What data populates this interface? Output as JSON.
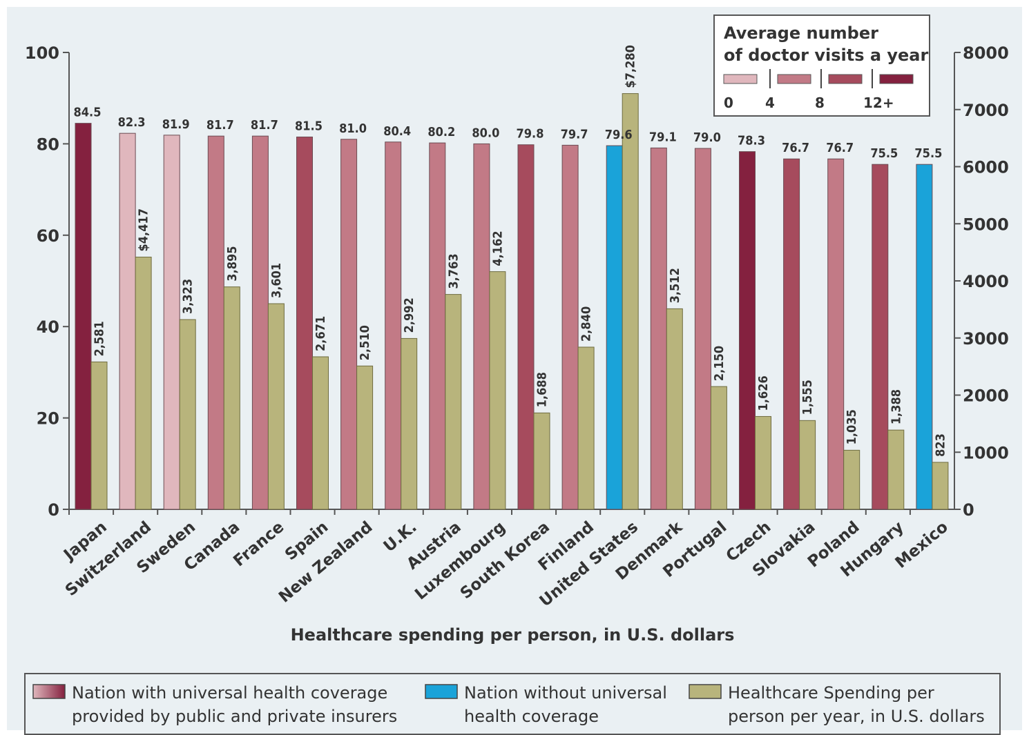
{
  "chart_data": {
    "type": "bar",
    "xlabel": "Healthcare spending per person, in U.S. dollars",
    "y_left_range": [
      0,
      100
    ],
    "y_left_ticks": [
      0,
      20,
      40,
      60,
      80,
      100
    ],
    "y_right_range": [
      0,
      8000
    ],
    "y_right_ticks": [
      0,
      1000,
      2000,
      3000,
      4000,
      5000,
      6000,
      7000,
      8000
    ],
    "grid": false,
    "categories": [
      "Japan",
      "Switzerland",
      "Sweden",
      "Canada",
      "France",
      "Spain",
      "New Zealand",
      "U.K.",
      "Austria",
      "Luxembourg",
      "South Korea",
      "Finland",
      "United States",
      "Denmark",
      "Portugal",
      "Czech",
      "Slovakia",
      "Poland",
      "Hungary",
      "Mexico"
    ],
    "series": [
      {
        "name": "",
        "axis": "left",
        "values": [
          84.5,
          82.3,
          81.9,
          81.7,
          81.7,
          81.5,
          81.0,
          80.4,
          80.2,
          80.0,
          79.8,
          79.7,
          79.6,
          79.1,
          79.0,
          78.3,
          76.7,
          76.7,
          75.5,
          75.5
        ],
        "labels": [
          "84.5",
          "82.3",
          "81.9",
          "81.7",
          "81.7",
          "81.5",
          "81.0",
          "80.4",
          "80.2",
          "80.0",
          "79.8",
          "79.7",
          "79.6",
          "79.1",
          "79.0",
          "78.3",
          "76.7",
          "76.7",
          "75.5",
          "75.5"
        ],
        "coverage": [
          "universal",
          "universal",
          "universal",
          "universal",
          "universal",
          "universal",
          "universal",
          "universal",
          "universal",
          "universal",
          "universal",
          "universal",
          "none",
          "universal",
          "universal",
          "universal",
          "universal",
          "universal",
          "universal",
          "none"
        ],
        "visits_level": [
          3,
          0,
          0,
          1,
          1,
          2,
          1,
          1,
          1,
          1,
          2,
          1,
          null,
          1,
          1,
          3,
          2,
          1,
          2,
          null
        ]
      },
      {
        "name": "Healthcare Spending per person per year, in U.S. dollars",
        "axis": "right",
        "values": [
          2581,
          4417,
          3323,
          3895,
          3601,
          2671,
          2510,
          2992,
          3763,
          4162,
          1688,
          2840,
          7280,
          3512,
          2150,
          1626,
          1555,
          1035,
          1388,
          823
        ],
        "labels": [
          "2,581",
          "$4,417",
          "3,323",
          "3,895",
          "3,601",
          "2,671",
          "2,510",
          "2,992",
          "3,763",
          "4,162",
          "1,688",
          "2,840",
          "$7,280",
          "3,512",
          "2,150",
          "1,626",
          "1,555",
          "1,035",
          "1,388",
          "823"
        ]
      }
    ],
    "visits_legend": {
      "title_line1": "Average number",
      "title_line2": "of doctor visits a year",
      "position": "top-right",
      "ticks": [
        "0",
        "4",
        "8",
        "12+"
      ]
    },
    "legend": {
      "position": "bottom",
      "items": [
        {
          "key": "universal",
          "line1": "Nation with universal health coverage",
          "line2": "provided by public and private insurers"
        },
        {
          "key": "none",
          "line1": "Nation without universal",
          "line2": "health coverage"
        },
        {
          "key": "spending",
          "line1": "Healthcare Spending per",
          "line2": "person per year, in U.S. dollars"
        }
      ]
    },
    "colors": {
      "visits": [
        "#e0b7bd",
        "#c27a86",
        "#a64b5d",
        "#84213f"
      ],
      "none": "#1aa3d9",
      "spending": "#b8b47c",
      "axis": "#555555",
      "text": "#333333"
    }
  }
}
